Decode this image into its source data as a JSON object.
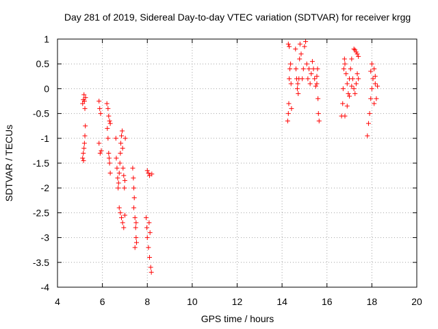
{
  "chart_data": {
    "type": "scatter",
    "title": "Day 281 of 2019, Sidereal Day-to-day VTEC variation (SDTVAR) for receiver krgg",
    "xlabel": "GPS time / hours",
    "ylabel": "SDTVAR / TECUs",
    "xlim": [
      4,
      20
    ],
    "ylim": [
      -4,
      1
    ],
    "xticks": [
      "4",
      "6",
      "8",
      "10",
      "12",
      "14",
      "16",
      "18",
      "20"
    ],
    "yticks": [
      "1",
      "0.5",
      "0",
      "-0.5",
      "-1",
      "-1.5",
      "-2",
      "-2.5",
      "-3",
      "-3.5",
      "-4"
    ],
    "grid": true,
    "marker": "plus",
    "series_color": "#ff0000",
    "series": [
      {
        "name": "sdtvar",
        "points": [
          [
            5.12,
            -0.3
          ],
          [
            5.15,
            -0.22
          ],
          [
            5.18,
            -0.12
          ],
          [
            5.2,
            -0.25
          ],
          [
            5.22,
            -0.4
          ],
          [
            5.25,
            -0.18
          ],
          [
            5.12,
            -1.4
          ],
          [
            5.15,
            -1.3
          ],
          [
            5.18,
            -1.2
          ],
          [
            5.2,
            -1.1
          ],
          [
            5.22,
            -0.95
          ],
          [
            5.24,
            -0.75
          ],
          [
            5.16,
            -1.45
          ],
          [
            5.85,
            -0.25
          ],
          [
            5.88,
            -0.4
          ],
          [
            5.92,
            -0.5
          ],
          [
            5.85,
            -1.1
          ],
          [
            5.9,
            -1.3
          ],
          [
            5.95,
            -1.25
          ],
          [
            6.2,
            -0.3
          ],
          [
            6.25,
            -0.4
          ],
          [
            6.28,
            -0.55
          ],
          [
            6.32,
            -0.65
          ],
          [
            6.35,
            -0.7
          ],
          [
            6.22,
            -0.8
          ],
          [
            6.25,
            -1.0
          ],
          [
            6.28,
            -1.3
          ],
          [
            6.32,
            -1.5
          ],
          [
            6.35,
            -1.7
          ],
          [
            6.3,
            -1.4
          ],
          [
            6.6,
            -1.0
          ],
          [
            6.62,
            -1.4
          ],
          [
            6.65,
            -1.6
          ],
          [
            6.68,
            -1.8
          ],
          [
            6.7,
            -2.0
          ],
          [
            6.72,
            -1.9
          ],
          [
            6.75,
            -1.7
          ],
          [
            6.78,
            -1.5
          ],
          [
            6.8,
            -1.3
          ],
          [
            6.82,
            -1.1
          ],
          [
            6.85,
            -0.95
          ],
          [
            6.88,
            -0.85
          ],
          [
            6.9,
            -1.2
          ],
          [
            6.92,
            -1.6
          ],
          [
            6.95,
            -1.75
          ],
          [
            6.98,
            -2.0
          ],
          [
            7.0,
            -1.85
          ],
          [
            7.02,
            -1.0
          ],
          [
            6.75,
            -2.4
          ],
          [
            6.8,
            -2.5
          ],
          [
            6.85,
            -2.6
          ],
          [
            6.9,
            -2.7
          ],
          [
            6.95,
            -2.8
          ],
          [
            7.0,
            -2.55
          ],
          [
            7.35,
            -1.6
          ],
          [
            7.38,
            -1.8
          ],
          [
            7.4,
            -2.0
          ],
          [
            7.42,
            -2.2
          ],
          [
            7.45,
            -2.6
          ],
          [
            7.48,
            -2.8
          ],
          [
            7.5,
            -3.0
          ],
          [
            7.52,
            -3.1
          ],
          [
            7.45,
            -3.2
          ],
          [
            7.4,
            -2.4
          ],
          [
            7.5,
            -2.7
          ],
          [
            7.95,
            -2.6
          ],
          [
            7.98,
            -2.8
          ],
          [
            8.0,
            -3.0
          ],
          [
            8.05,
            -3.2
          ],
          [
            8.1,
            -3.4
          ],
          [
            8.15,
            -3.6
          ],
          [
            8.18,
            -3.7
          ],
          [
            8.12,
            -2.9
          ],
          [
            8.08,
            -2.7
          ],
          [
            8.0,
            -1.65
          ],
          [
            8.05,
            -1.7
          ],
          [
            8.1,
            -1.75
          ],
          [
            8.2,
            -1.72
          ],
          [
            14.25,
            -0.65
          ],
          [
            14.28,
            -0.5
          ],
          [
            14.3,
            -0.3
          ],
          [
            14.32,
            0.2
          ],
          [
            14.35,
            0.4
          ],
          [
            14.38,
            0.5
          ],
          [
            14.28,
            0.9
          ],
          [
            14.32,
            0.85
          ],
          [
            14.4,
            0.1
          ],
          [
            14.42,
            -0.4
          ],
          [
            14.6,
            0.8
          ],
          [
            14.62,
            0.4
          ],
          [
            14.65,
            0.2
          ],
          [
            14.68,
            0.0
          ],
          [
            14.7,
            0.1
          ],
          [
            14.72,
            -0.1
          ],
          [
            14.75,
            0.2
          ],
          [
            14.78,
            0.6
          ],
          [
            14.8,
            0.9
          ],
          [
            14.85,
            0.7
          ],
          [
            14.9,
            0.2
          ],
          [
            14.95,
            0.4
          ],
          [
            15.0,
            0.85
          ],
          [
            15.05,
            0.95
          ],
          [
            15.1,
            0.5
          ],
          [
            15.15,
            0.2
          ],
          [
            15.2,
            0.4
          ],
          [
            15.25,
            0.1
          ],
          [
            15.3,
            0.3
          ],
          [
            15.35,
            0.55
          ],
          [
            15.4,
            0.4
          ],
          [
            15.45,
            0.2
          ],
          [
            15.5,
            0.05
          ],
          [
            15.55,
            0.1
          ],
          [
            15.6,
            -0.2
          ],
          [
            15.62,
            -0.5
          ],
          [
            15.65,
            -0.65
          ],
          [
            15.58,
            0.4
          ],
          [
            15.55,
            0.25
          ],
          [
            16.65,
            -0.55
          ],
          [
            16.7,
            -0.3
          ],
          [
            16.72,
            0.0
          ],
          [
            16.75,
            0.4
          ],
          [
            16.78,
            0.6
          ],
          [
            16.8,
            0.5
          ],
          [
            16.85,
            0.3
          ],
          [
            16.9,
            0.1
          ],
          [
            16.95,
            -0.1
          ],
          [
            17.0,
            0.2
          ],
          [
            17.05,
            0.4
          ],
          [
            17.1,
            0.6
          ],
          [
            17.15,
            0.2
          ],
          [
            17.2,
            0.0
          ],
          [
            17.25,
            -0.1
          ],
          [
            17.3,
            0.1
          ],
          [
            17.35,
            0.3
          ],
          [
            17.4,
            0.2
          ],
          [
            17.2,
            0.8
          ],
          [
            17.25,
            0.78
          ],
          [
            17.3,
            0.74
          ],
          [
            17.35,
            0.7
          ],
          [
            17.4,
            0.65
          ],
          [
            16.8,
            -0.55
          ],
          [
            16.9,
            -0.35
          ],
          [
            17.0,
            -0.15
          ],
          [
            17.1,
            0.05
          ],
          [
            17.8,
            -0.95
          ],
          [
            17.85,
            -0.7
          ],
          [
            17.9,
            -0.5
          ],
          [
            17.95,
            -0.2
          ],
          [
            18.0,
            0.0
          ],
          [
            18.05,
            0.2
          ],
          [
            18.1,
            0.4
          ],
          [
            18.15,
            0.1
          ],
          [
            18.2,
            -0.2
          ],
          [
            18.25,
            0.05
          ],
          [
            18.0,
            0.5
          ],
          [
            17.95,
            0.35
          ],
          [
            18.1,
            -0.3
          ],
          [
            18.15,
            0.25
          ]
        ]
      }
    ]
  }
}
